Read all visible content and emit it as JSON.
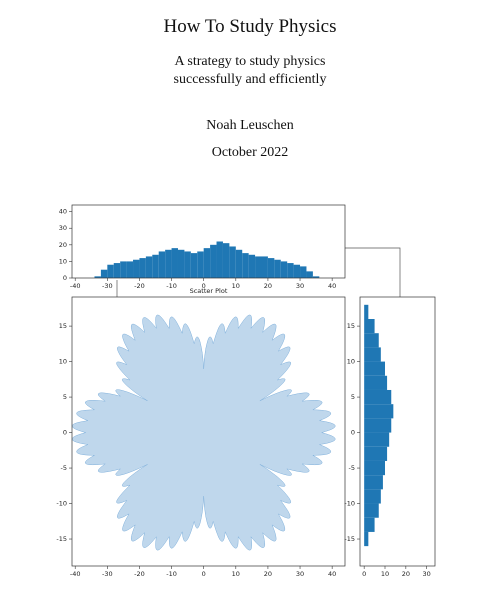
{
  "document": {
    "title": "How To Study Physics",
    "subtitle": [
      "A strategy to study physics",
      "successfully and efficiently"
    ],
    "author": "Noah Leuschen",
    "date": "October 2022"
  },
  "chart_data": [
    {
      "type": "histogram",
      "orientation": "vertical",
      "color": "#1f77b4",
      "bins": [
        -36,
        -34,
        -32,
        -30,
        -28,
        -26,
        -24,
        -22,
        -20,
        -18,
        -16,
        -14,
        -12,
        -10,
        -8,
        -6,
        -4,
        -2,
        0,
        2,
        4,
        6,
        8,
        10,
        12,
        14,
        16,
        18,
        20,
        22,
        24,
        26,
        28,
        30,
        32,
        34,
        36
      ],
      "values": [
        0,
        1,
        5,
        8,
        9,
        10,
        10,
        11,
        12,
        13,
        14,
        16,
        17,
        18,
        17,
        16,
        15,
        16,
        18,
        20,
        22,
        21,
        19,
        17,
        15,
        14,
        13,
        13,
        12,
        11,
        10,
        9,
        8,
        7,
        4,
        1
      ],
      "xlim": [
        -41,
        44
      ],
      "xticks": [
        -40,
        -30,
        -20,
        -10,
        0,
        10,
        20,
        30,
        40
      ],
      "ylim": [
        0,
        44
      ],
      "yticks": [
        0,
        10,
        20,
        30,
        40
      ]
    },
    {
      "type": "scatter",
      "title": "Scatter Plot",
      "color": "#a9c9e6",
      "xlim": [
        -41,
        44
      ],
      "xticks": [
        -40,
        -30,
        -20,
        -10,
        0,
        10,
        20,
        30,
        40
      ],
      "ylim": [
        -18.8,
        19.1
      ],
      "yticks": [
        -15,
        -10,
        -5,
        0,
        5,
        10,
        15
      ]
    },
    {
      "type": "histogram",
      "orientation": "horizontal",
      "color": "#1f77b4",
      "bins": [
        -18,
        -16,
        -14,
        -12,
        -10,
        -8,
        -6,
        -4,
        -2,
        0,
        2,
        4,
        6,
        8,
        10,
        12,
        14,
        16,
        18
      ],
      "values": [
        0,
        2,
        5,
        7,
        8,
        9,
        10,
        11,
        12,
        13,
        14,
        13,
        11,
        10,
        8,
        7,
        5,
        2
      ],
      "xlim": [
        -2,
        34
      ],
      "xticks": [
        0,
        10,
        20,
        30
      ],
      "ylim": [
        -18.8,
        19.1
      ],
      "yticks": [
        -15,
        -10,
        -5,
        0,
        5,
        10,
        15
      ]
    }
  ]
}
